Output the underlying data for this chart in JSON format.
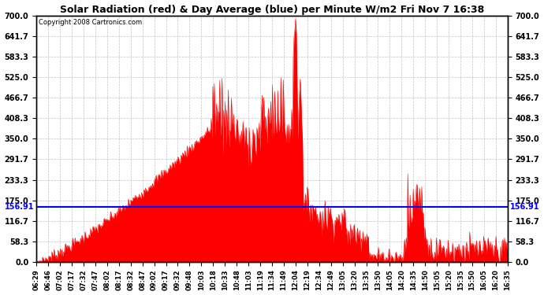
{
  "title": "Solar Radiation (red) & Day Average (blue) per Minute W/m2 Fri Nov 7 16:38",
  "copyright": "Copyright 2008 Cartronics.com",
  "y_min": 0.0,
  "y_max": 700.0,
  "y_ticks": [
    0.0,
    58.3,
    116.7,
    175.0,
    233.3,
    291.7,
    350.0,
    408.3,
    466.7,
    525.0,
    583.3,
    641.7,
    700.0
  ],
  "blue_line_value": 156.91,
  "bar_color": "#FF0000",
  "line_color": "#0000FF",
  "background_color": "#FFFFFF",
  "grid_color": "#AAAAAA",
  "x_labels": [
    "06:29",
    "06:46",
    "07:02",
    "07:17",
    "07:32",
    "07:47",
    "08:02",
    "08:17",
    "08:32",
    "08:47",
    "09:02",
    "09:17",
    "09:32",
    "09:48",
    "10:03",
    "10:18",
    "10:33",
    "10:48",
    "11:03",
    "11:19",
    "11:34",
    "11:49",
    "12:04",
    "12:19",
    "12:34",
    "12:49",
    "13:05",
    "13:20",
    "13:35",
    "13:50",
    "14:05",
    "14:20",
    "14:35",
    "14:50",
    "15:05",
    "15:20",
    "15:35",
    "15:50",
    "16:05",
    "16:20",
    "16:35"
  ],
  "num_points": 610
}
